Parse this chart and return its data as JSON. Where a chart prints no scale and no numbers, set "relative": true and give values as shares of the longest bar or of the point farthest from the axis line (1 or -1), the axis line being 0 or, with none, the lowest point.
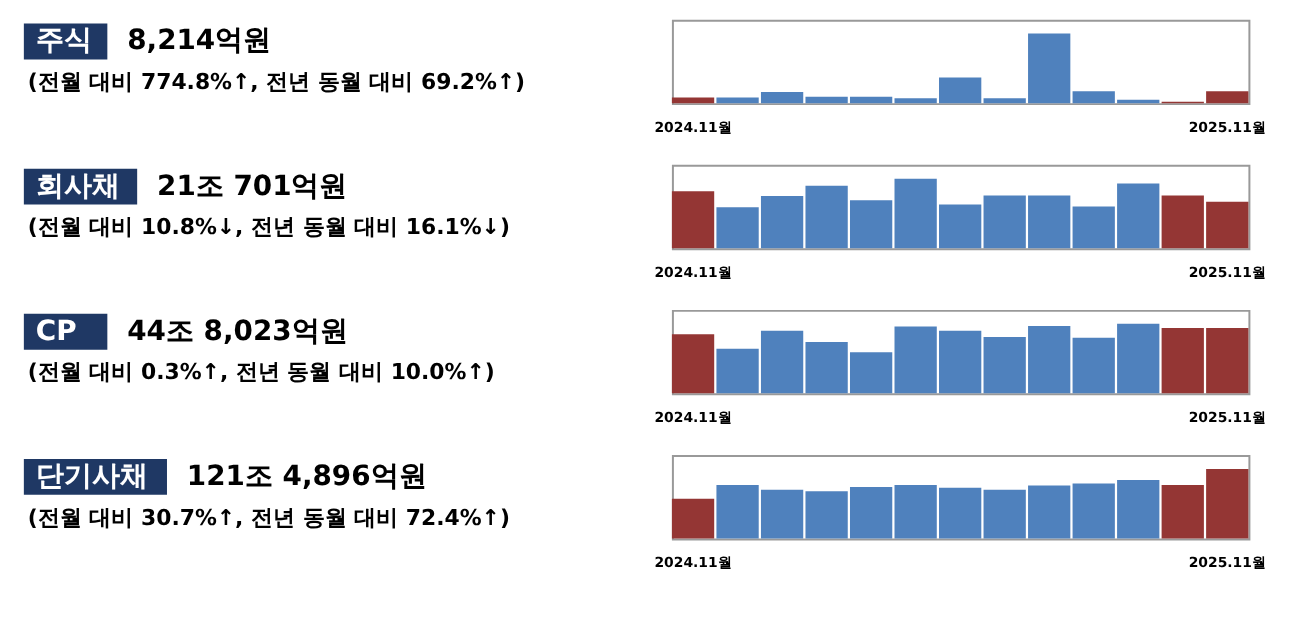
{
  "chart_data": [
    {
      "type": "other",
      "title": "주식",
      "subtitle": "8,214억원",
      "annotations": [
        "(전월 대비 774.8%↑, 전년 동월 대비 69.2%↑)"
      ]
    },
    {
      "type": "bar",
      "relative": true,
      "categories": [
        "2024.11월",
        null,
        null,
        null,
        null,
        null,
        null,
        null,
        null,
        null,
        null,
        null,
        "2025.11월"
      ],
      "values": [
        0.08,
        0.08,
        0.16,
        0.09,
        0.09,
        0.07,
        0.37,
        0.07,
        1,
        0.17,
        0.05,
        0.02,
        0.17
      ],
      "colors": [
        "#943634",
        "#4f81bd",
        "#4f81bd",
        "#4f81bd",
        "#4f81bd",
        "#4f81bd",
        "#4f81bd",
        "#4f81bd",
        "#4f81bd",
        "#4f81bd",
        "#4f81bd",
        "#943634",
        "#943634"
      ]
    },
    {
      "type": "other",
      "title": "회사채",
      "subtitle": "21조 701억원",
      "annotations": [
        "(전월 대비 10.8%↓, 전년 동월 대비 16.1%↓)"
      ]
    },
    {
      "type": "bar",
      "relative": true,
      "categories": [
        "2024.11월",
        null,
        null,
        null,
        null,
        null,
        null,
        null,
        null,
        null,
        null,
        null,
        "2025.11월"
      ],
      "values": [
        0.82,
        0.59,
        0.75,
        0.9,
        0.69,
        1,
        0.63,
        0.76,
        0.76,
        0.6,
        0.93,
        0.76,
        0.67
      ],
      "colors": [
        "#943634",
        "#4f81bd",
        "#4f81bd",
        "#4f81bd",
        "#4f81bd",
        "#4f81bd",
        "#4f81bd",
        "#4f81bd",
        "#4f81bd",
        "#4f81bd",
        "#4f81bd",
        "#943634",
        "#943634"
      ]
    },
    {
      "type": "other",
      "title": "CP",
      "subtitle": "44조 8,023억원",
      "annotations": [
        "(전월 대비 0.3%↑, 전년 동월 대비 10.0%↑)"
      ]
    },
    {
      "type": "bar",
      "relative": true,
      "categories": [
        "2024.11월",
        null,
        null,
        null,
        null,
        null,
        null,
        null,
        null,
        null,
        null,
        null,
        "2025.11월"
      ],
      "values": [
        0.85,
        0.64,
        0.9,
        0.74,
        0.59,
        0.96,
        0.9,
        0.81,
        0.97,
        0.8,
        1,
        0.94,
        0.94
      ],
      "colors": [
        "#943634",
        "#4f81bd",
        "#4f81bd",
        "#4f81bd",
        "#4f81bd",
        "#4f81bd",
        "#4f81bd",
        "#4f81bd",
        "#4f81bd",
        "#4f81bd",
        "#4f81bd",
        "#943634",
        "#943634"
      ]
    },
    {
      "type": "other",
      "title": "단기사채",
      "subtitle": "121조 4,896억원",
      "annotations": [
        "(전월 대비 30.7%↑, 전년 동월 대비 72.4%↑)"
      ]
    },
    {
      "type": "bar",
      "relative": true,
      "categories": [
        "2024.11월",
        null,
        null,
        null,
        null,
        null,
        null,
        null,
        null,
        null,
        null,
        null,
        "2025.11월"
      ],
      "values": [
        0.57,
        0.77,
        0.7,
        0.68,
        0.74,
        0.77,
        0.73,
        0.7,
        0.76,
        0.79,
        0.84,
        0.77,
        1
      ],
      "colors": [
        "#943634",
        "#4f81bd",
        "#4f81bd",
        "#4f81bd",
        "#4f81bd",
        "#4f81bd",
        "#4f81bd",
        "#4f81bd",
        "#4f81bd",
        "#4f81bd",
        "#4f81bd",
        "#943634",
        "#943634"
      ]
    }
  ]
}
